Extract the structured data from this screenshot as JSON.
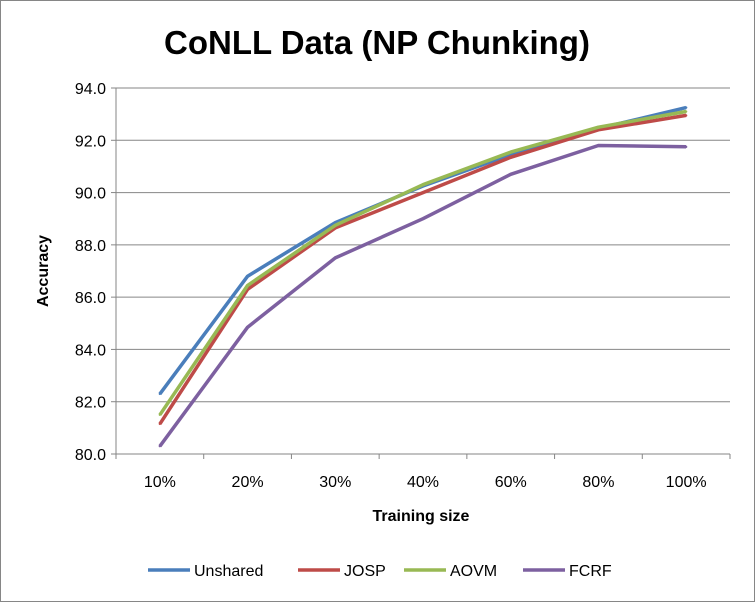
{
  "chart_data": {
    "type": "line",
    "title": "CoNLL Data (NP Chunking)",
    "xlabel": "Training size",
    "ylabel": "Accuracy",
    "categories": [
      "10%",
      "20%",
      "30%",
      "40%",
      "60%",
      "80%",
      "100%"
    ],
    "ylim": [
      80.0,
      94.0
    ],
    "yticks": [
      "80.0",
      "82.0",
      "84.0",
      "86.0",
      "88.0",
      "90.0",
      "92.0",
      "94.0"
    ],
    "grid": true,
    "legend_position": "bottom",
    "series": [
      {
        "name": "Unshared",
        "color": "#4a7ebb",
        "values": [
          82.3,
          86.8,
          88.85,
          90.25,
          91.45,
          92.45,
          93.25
        ]
      },
      {
        "name": "JOSP",
        "color": "#be4b48",
        "values": [
          81.15,
          86.3,
          88.65,
          90.0,
          91.35,
          92.4,
          92.95
        ]
      },
      {
        "name": "AOVM",
        "color": "#98b954",
        "values": [
          81.5,
          86.45,
          88.75,
          90.3,
          91.55,
          92.5,
          93.1
        ]
      },
      {
        "name": "FCRF",
        "color": "#7d60a0",
        "values": [
          80.3,
          84.85,
          87.5,
          89.0,
          90.7,
          91.8,
          91.75
        ]
      }
    ]
  }
}
